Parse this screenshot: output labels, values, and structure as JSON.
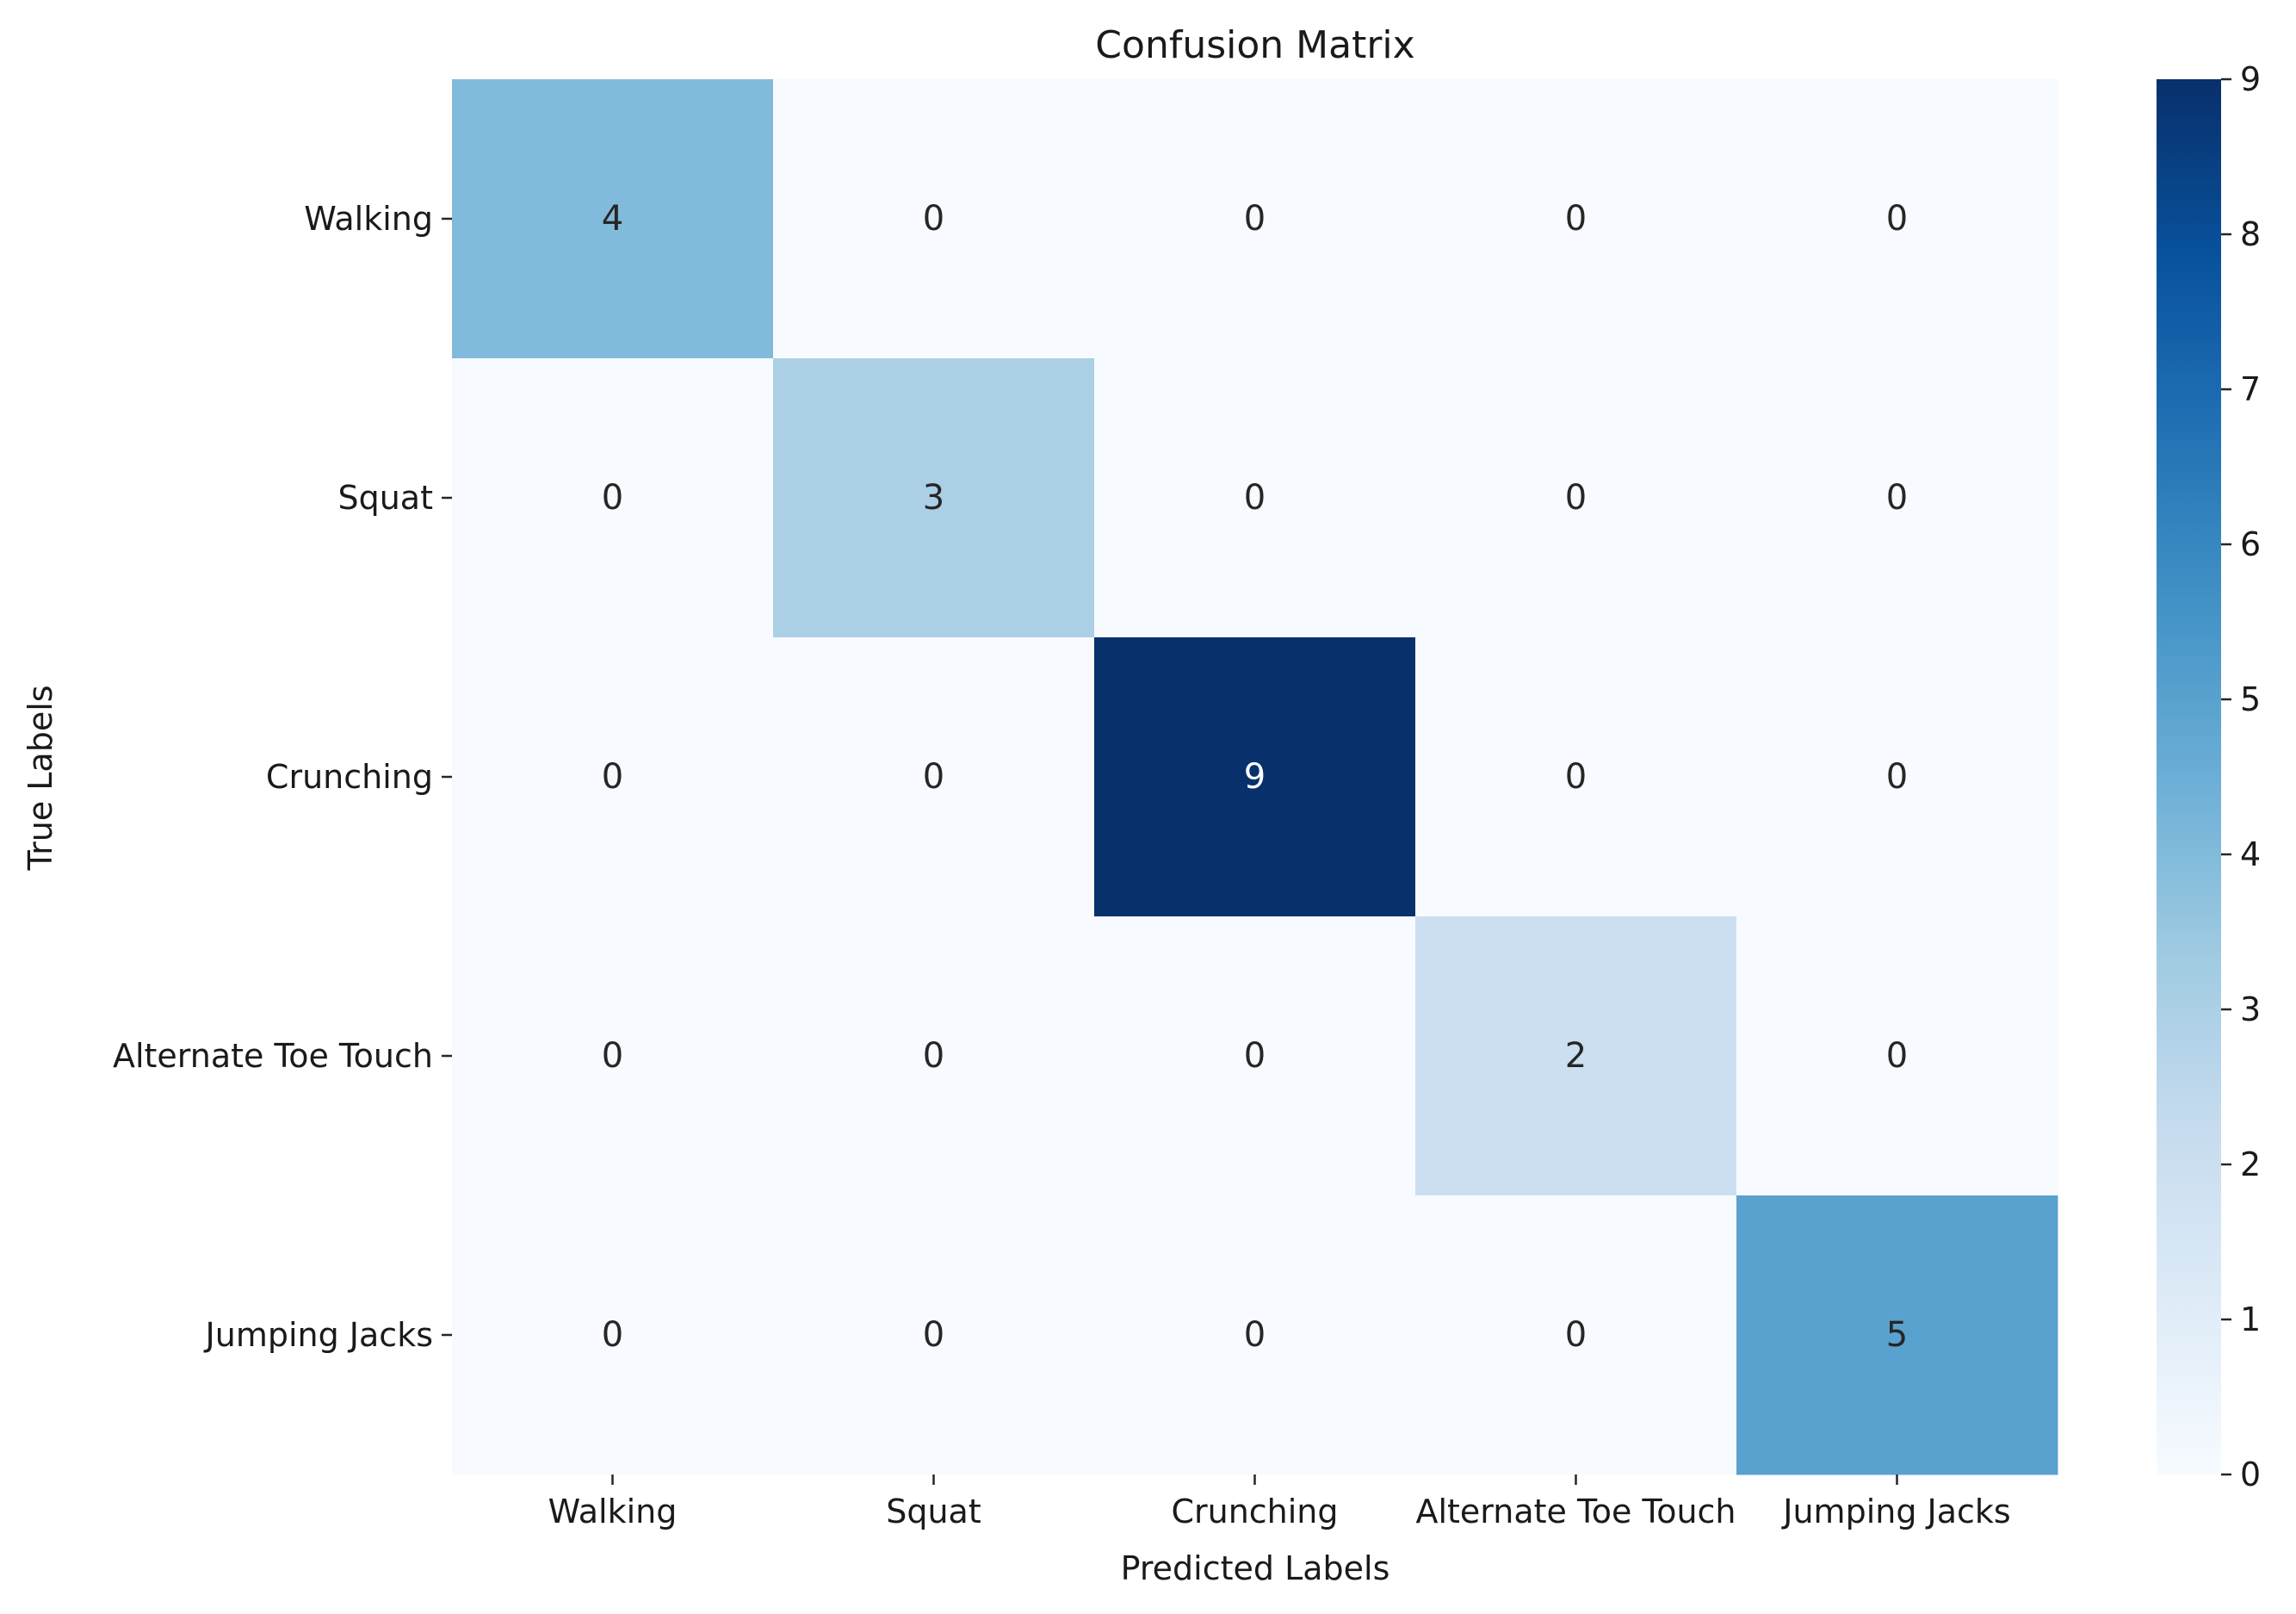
{
  "chart_data": {
    "type": "heatmap",
    "title": "Confusion Matrix",
    "xlabel": "Predicted Labels",
    "ylabel": "True Labels",
    "x_categories": [
      "Walking",
      "Squat",
      "Crunching",
      "Alternate Toe Touch",
      "Jumping Jacks"
    ],
    "y_categories": [
      "Walking",
      "Squat",
      "Crunching",
      "Alternate Toe Touch",
      "Jumping Jacks"
    ],
    "values": [
      [
        4,
        0,
        0,
        0,
        0
      ],
      [
        0,
        3,
        0,
        0,
        0
      ],
      [
        0,
        0,
        9,
        0,
        0
      ],
      [
        0,
        0,
        0,
        2,
        0
      ],
      [
        0,
        0,
        0,
        0,
        5
      ]
    ],
    "colormap": "Blues",
    "colorbar": {
      "min": 0,
      "max": 9,
      "ticks": [
        0,
        1,
        2,
        3,
        4,
        5,
        6,
        7,
        8,
        9
      ]
    },
    "annotations": true
  }
}
